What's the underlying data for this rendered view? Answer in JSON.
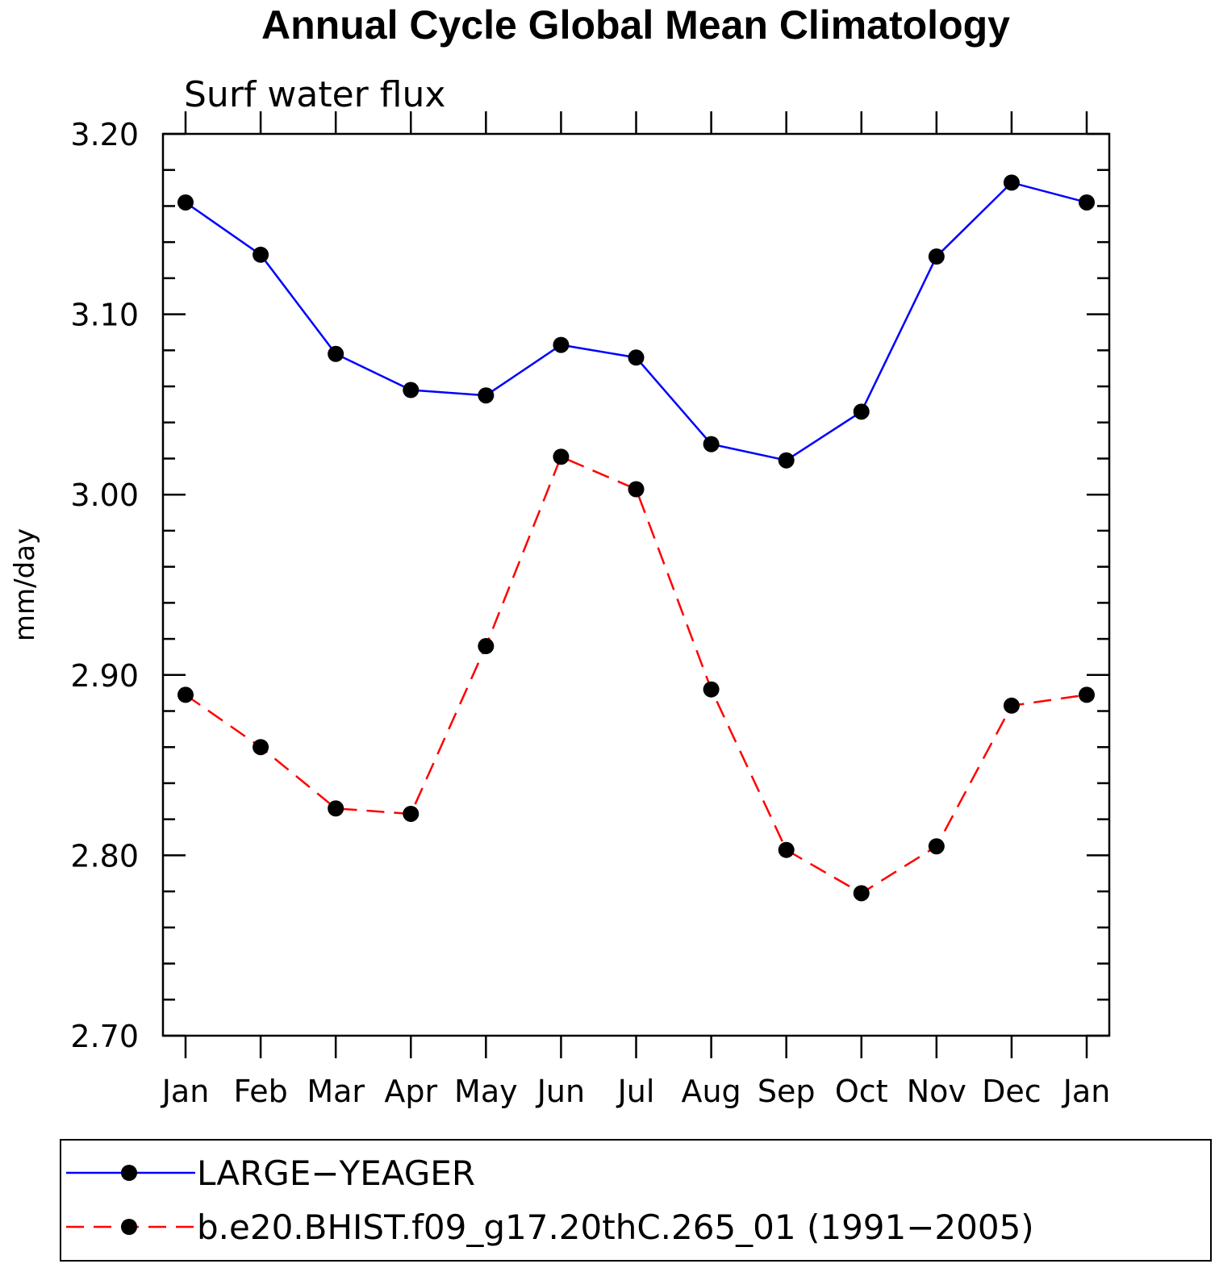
{
  "chart_data": {
    "type": "line",
    "title": "Annual Cycle Global Mean Climatology",
    "subtitle": "Surf water flux",
    "xlabel": "",
    "ylabel": "mm/day",
    "categories": [
      "Jan",
      "Feb",
      "Mar",
      "Apr",
      "May",
      "Jun",
      "Jul",
      "Aug",
      "Sep",
      "Oct",
      "Nov",
      "Dec",
      "Jan"
    ],
    "ylim": [
      2.7,
      3.2
    ],
    "yticks": [
      "2.70",
      "2.80",
      "2.90",
      "3.00",
      "3.10",
      "3.20"
    ],
    "yminor_step": 0.02,
    "grid": false,
    "legend_placement": "bottom",
    "series": [
      {
        "name": "LARGE−YEAGER",
        "color": "#0000ff",
        "dash": "solid",
        "marker": "filled-circle",
        "values": [
          3.162,
          3.133,
          3.078,
          3.058,
          3.055,
          3.083,
          3.076,
          3.028,
          3.019,
          3.046,
          3.132,
          3.173,
          3.162
        ]
      },
      {
        "name": "b.e20.BHIST.f09_g17.20thC.265_01 (1991−2005)",
        "color": "#ff0000",
        "dash": "dashed",
        "marker": "filled-circle",
        "values": [
          2.889,
          2.86,
          2.826,
          2.823,
          2.916,
          3.021,
          3.003,
          2.892,
          2.803,
          2.779,
          2.805,
          2.883,
          2.889
        ]
      }
    ]
  }
}
